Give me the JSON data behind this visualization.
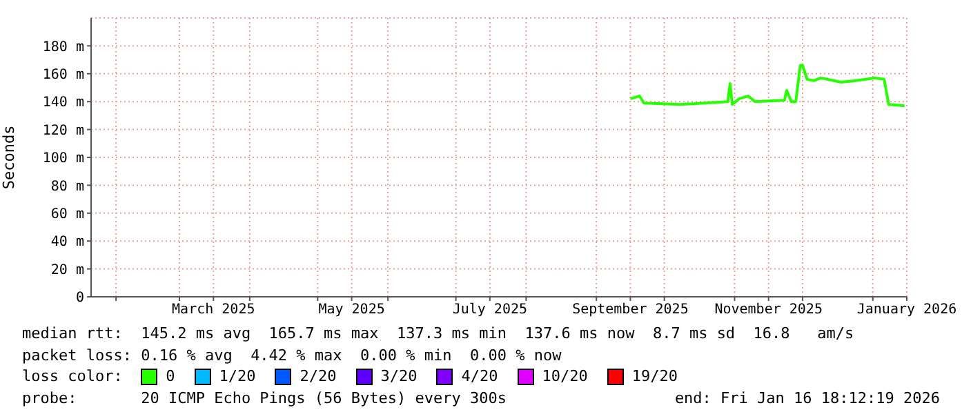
{
  "chart_data": {
    "type": "line",
    "ylabel": "Seconds",
    "x": [
      "2025-09-16",
      "2025-09-20",
      "2025-09-22",
      "2025-10-08",
      "2025-10-19",
      "2025-10-29",
      "2025-10-30",
      "2025-10-31",
      "2025-11-03",
      "2025-11-07",
      "2025-11-10",
      "2025-11-23",
      "2025-11-24",
      "2025-11-26",
      "2025-11-28",
      "2025-11-30",
      "2025-12-01",
      "2025-12-03",
      "2025-12-06",
      "2025-12-09",
      "2025-12-18",
      "2025-12-24",
      "2026-01-02",
      "2026-01-06",
      "2026-01-08",
      "2026-01-15"
    ],
    "series": [
      {
        "name": "0",
        "color": "#26ff00",
        "values": [
          142,
          144,
          139,
          138,
          139,
          140,
          153,
          138,
          142,
          144,
          140,
          141,
          148,
          140,
          140,
          166,
          166,
          156,
          155,
          157,
          154,
          155,
          157,
          156,
          138,
          137
        ]
      },
      {
        "name": "1/20",
        "color": "#00b8ff",
        "values": [
          null,
          null,
          null,
          null,
          null,
          null,
          null,
          null,
          null,
          null,
          null,
          null,
          null,
          null,
          null,
          null,
          null,
          null,
          null,
          null,
          null,
          null,
          null,
          null,
          null,
          null
        ]
      },
      {
        "name": "2/20",
        "color": "#0059ff",
        "values": [
          null,
          null,
          null,
          null,
          null,
          null,
          null,
          null,
          null,
          null,
          null,
          null,
          null,
          null,
          null,
          null,
          null,
          null,
          null,
          null,
          null,
          null,
          null,
          null,
          null,
          null
        ]
      },
      {
        "name": "3/20",
        "color": "#5e00ff",
        "values": [
          null,
          null,
          null,
          null,
          null,
          null,
          null,
          null,
          null,
          null,
          null,
          null,
          null,
          null,
          null,
          null,
          null,
          null,
          null,
          null,
          null,
          null,
          null,
          null,
          null,
          null
        ]
      },
      {
        "name": "4/20",
        "color": "#7e00ff",
        "values": [
          null,
          null,
          null,
          null,
          null,
          null,
          null,
          null,
          null,
          null,
          null,
          null,
          null,
          null,
          null,
          null,
          null,
          null,
          null,
          null,
          null,
          null,
          null,
          null,
          null,
          null
        ]
      },
      {
        "name": "10/20",
        "color": "#dd00ff",
        "values": [
          null,
          null,
          null,
          null,
          null,
          null,
          null,
          null,
          null,
          null,
          null,
          null,
          null,
          null,
          null,
          null,
          null,
          null,
          null,
          null,
          null,
          null,
          null,
          null,
          null,
          null
        ]
      },
      {
        "name": "19/20",
        "color": "#ff0000",
        "values": [
          null,
          null,
          null,
          null,
          null,
          null,
          null,
          null,
          null,
          null,
          null,
          null,
          null,
          null,
          null,
          null,
          null,
          null,
          null,
          null,
          null,
          null,
          null,
          null,
          null,
          null
        ]
      }
    ],
    "xlim": [
      "2025-01-21",
      "2026-01-16"
    ],
    "xticks": [
      {
        "value": "2025-02-01",
        "label": null
      },
      {
        "value": "2025-03-01",
        "label": null
      },
      {
        "value": "2025-03-16",
        "label": "March 2025"
      },
      {
        "value": "2025-04-01",
        "label": null
      },
      {
        "value": "2025-05-01",
        "label": null
      },
      {
        "value": "2025-05-16",
        "label": "May 2025"
      },
      {
        "value": "2025-06-01",
        "label": null
      },
      {
        "value": "2025-07-01",
        "label": null
      },
      {
        "value": "2025-07-16",
        "label": "July 2025"
      },
      {
        "value": "2025-08-01",
        "label": null
      },
      {
        "value": "2025-09-01",
        "label": null
      },
      {
        "value": "2025-09-16",
        "label": "September 2025"
      },
      {
        "value": "2025-10-01",
        "label": null
      },
      {
        "value": "2025-11-01",
        "label": null
      },
      {
        "value": "2025-11-16",
        "label": "November 2025"
      },
      {
        "value": "2025-12-01",
        "label": null
      },
      {
        "value": "2026-01-01",
        "label": null
      },
      {
        "value": "2026-01-16",
        "label": "January 2026"
      }
    ],
    "ylim": [
      0,
      200
    ],
    "yticks": [
      0,
      {
        "value": 20,
        "label": "20 m"
      },
      {
        "value": 40,
        "label": "40 m"
      },
      {
        "value": 60,
        "label": "60 m"
      },
      {
        "value": 80,
        "label": "80 m"
      },
      {
        "value": 100,
        "label": "100 m"
      },
      {
        "value": 120,
        "label": "120 m"
      },
      {
        "value": 140,
        "label": "140 m"
      },
      {
        "value": 160,
        "label": "160 m"
      },
      {
        "value": 180,
        "label": "180 m"
      }
    ],
    "grid": true,
    "legend": "bottom",
    "legend_title": "loss color:",
    "marker": "none",
    "line_style": "solid",
    "annotations": [
      "median rtt:  145.2 ms avg  165.7 ms max  137.3 ms min  137.6 ms now  8.7 ms sd  16.8   am/s",
      "packet loss: 0.16 % avg  4.42 % max  0.00 % min  0.00 % now",
      "probe:       20 ICMP Echo Pings (56 Bytes) every 300s",
      "end: Fri Jan 16 18:12:19 2026"
    ]
  }
}
